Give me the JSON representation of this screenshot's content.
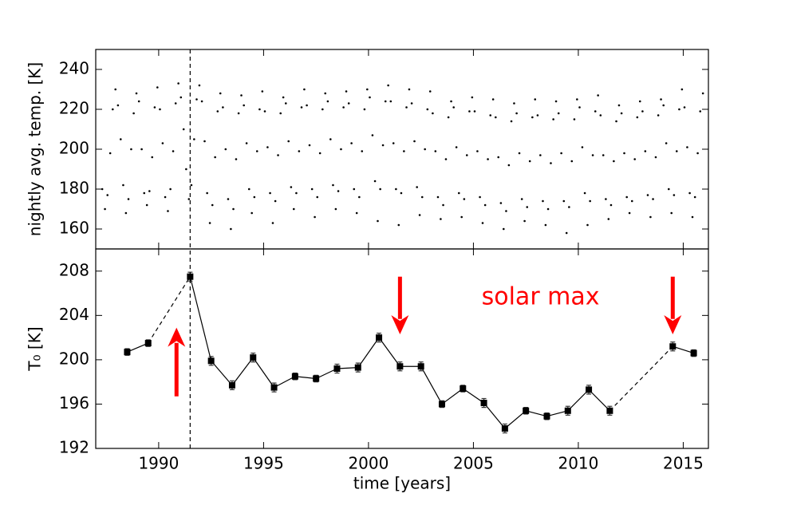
{
  "chart_data": [
    {
      "type": "scatter",
      "ylabel": "nightly avg. temp. [K]",
      "color": "#000000",
      "xlim": [
        1987,
        2016.2
      ],
      "xticks": [
        1990,
        1995,
        2000,
        2005,
        2010,
        2015
      ],
      "xtick_labels": false,
      "ylim": [
        150,
        250
      ],
      "yticks": [
        160,
        180,
        200,
        220,
        240
      ],
      "x": [
        1987.31,
        1987.44,
        1987.56,
        1987.69,
        1987.81,
        1987.94,
        1988.06,
        1988.19,
        1988.31,
        1988.44,
        1988.56,
        1988.69,
        1988.81,
        1988.94,
        1989.06,
        1989.19,
        1989.31,
        1989.44,
        1989.56,
        1989.69,
        1989.81,
        1989.94,
        1990.06,
        1990.19,
        1990.31,
        1990.44,
        1990.56,
        1990.69,
        1990.81,
        1990.94,
        1991.06,
        1991.19,
        1991.31,
        1991.44,
        1991.56,
        1991.69,
        1991.81,
        1991.94,
        1992.06,
        1992.19,
        1992.31,
        1992.44,
        1992.56,
        1992.69,
        1992.81,
        1992.94,
        1993.06,
        1993.19,
        1993.31,
        1993.44,
        1993.56,
        1993.69,
        1993.81,
        1993.94,
        1994.06,
        1994.19,
        1994.31,
        1994.44,
        1994.56,
        1994.69,
        1994.81,
        1994.94,
        1995.06,
        1995.19,
        1995.31,
        1995.44,
        1995.56,
        1995.69,
        1995.81,
        1995.94,
        1996.06,
        1996.19,
        1996.31,
        1996.44,
        1996.56,
        1996.69,
        1996.81,
        1996.94,
        1997.06,
        1997.19,
        1997.31,
        1997.44,
        1997.56,
        1997.69,
        1997.81,
        1997.94,
        1998.06,
        1998.19,
        1998.31,
        1998.44,
        1998.56,
        1998.69,
        1998.81,
        1998.94,
        1999.06,
        1999.19,
        1999.31,
        1999.44,
        1999.56,
        1999.69,
        1999.81,
        1999.94,
        2000.06,
        2000.19,
        2000.31,
        2000.44,
        2000.56,
        2000.69,
        2000.81,
        2000.94,
        2001.06,
        2001.19,
        2001.31,
        2001.44,
        2001.56,
        2001.69,
        2001.81,
        2001.94,
        2002.06,
        2002.19,
        2002.31,
        2002.44,
        2002.56,
        2002.69,
        2002.81,
        2002.94,
        2003.06,
        2003.19,
        2003.31,
        2003.44,
        2003.56,
        2003.69,
        2003.81,
        2003.94,
        2004.06,
        2004.19,
        2004.31,
        2004.44,
        2004.56,
        2004.69,
        2004.81,
        2004.94,
        2005.06,
        2005.19,
        2005.31,
        2005.44,
        2005.56,
        2005.69,
        2005.81,
        2005.94,
        2006.06,
        2006.19,
        2006.31,
        2006.44,
        2006.56,
        2006.69,
        2006.81,
        2006.94,
        2007.06,
        2007.19,
        2007.31,
        2007.44,
        2007.56,
        2007.69,
        2007.81,
        2007.94,
        2008.06,
        2008.19,
        2008.31,
        2008.44,
        2008.56,
        2008.69,
        2008.81,
        2008.94,
        2009.06,
        2009.19,
        2009.31,
        2009.44,
        2009.56,
        2009.69,
        2009.81,
        2009.94,
        2010.06,
        2010.19,
        2010.31,
        2010.44,
        2010.56,
        2010.69,
        2010.81,
        2010.94,
        2011.06,
        2011.19,
        2011.31,
        2011.44,
        2011.56,
        2011.69,
        2011.81,
        2011.94,
        2012.06,
        2012.19,
        2012.31,
        2012.44,
        2012.56,
        2012.69,
        2012.81,
        2012.94,
        2013.06,
        2013.19,
        2013.31,
        2013.44,
        2013.56,
        2013.69,
        2013.81,
        2013.94,
        2014.06,
        2014.19,
        2014.31,
        2014.44,
        2014.56,
        2014.69,
        2014.81,
        2014.94,
        2015.06,
        2015.19,
        2015.31,
        2015.44,
        2015.56,
        2015.69,
        2015.81,
        2015.94
      ],
      "values": [
        180,
        170,
        177,
        198,
        220,
        230,
        222,
        205,
        182,
        168,
        175,
        200,
        218,
        228,
        224,
        200,
        178,
        172,
        179,
        196,
        221,
        231,
        220,
        203,
        176,
        169,
        180,
        199,
        223,
        233,
        226,
        210,
        190,
        175,
        182,
        205,
        225,
        232,
        224,
        204,
        178,
        163,
        172,
        196,
        219,
        228,
        221,
        200,
        175,
        160,
        170,
        195,
        218,
        227,
        222,
        203,
        180,
        168,
        176,
        199,
        220,
        229,
        219,
        201,
        178,
        163,
        174,
        197,
        218,
        226,
        223,
        204,
        181,
        170,
        178,
        199,
        221,
        230,
        222,
        202,
        180,
        166,
        176,
        198,
        220,
        228,
        224,
        205,
        182,
        170,
        179,
        200,
        221,
        229,
        223,
        203,
        180,
        168,
        176,
        199,
        220,
        230,
        226,
        207,
        184,
        164,
        180,
        202,
        224,
        232,
        224,
        203,
        180,
        162,
        178,
        199,
        221,
        230,
        223,
        204,
        181,
        167,
        176,
        200,
        220,
        229,
        218,
        199,
        176,
        165,
        172,
        195,
        216,
        224,
        221,
        201,
        178,
        166,
        175,
        197,
        219,
        226,
        219,
        199,
        176,
        163,
        172,
        195,
        217,
        225,
        216,
        196,
        173,
        160,
        169,
        192,
        214,
        223,
        218,
        198,
        175,
        164,
        171,
        194,
        216,
        225,
        217,
        197,
        174,
        162,
        170,
        193,
        215,
        224,
        218,
        198,
        174,
        158,
        171,
        194,
        215,
        225,
        221,
        201,
        178,
        162,
        174,
        197,
        219,
        227,
        217,
        197,
        175,
        165,
        172,
        194,
        214,
        222,
        218,
        198,
        176,
        168,
        174,
        195,
        216,
        224,
        219,
        199,
        177,
        166,
        175,
        196,
        217,
        225,
        222,
        203,
        180,
        168,
        177,
        199,
        220,
        230,
        221,
        201,
        178,
        166,
        176,
        198,
        219,
        228
      ]
    },
    {
      "type": "errorbar",
      "xlabel": "time [years]",
      "ylabel": "T₀ [K]",
      "color": "#000000",
      "xlim": [
        1987,
        2016.2
      ],
      "xticks": [
        1990,
        1995,
        2000,
        2005,
        2010,
        2015
      ],
      "ylim": [
        192,
        210
      ],
      "yticks": [
        192,
        196,
        200,
        204,
        208
      ],
      "x": [
        1988.5,
        1989.5,
        1991.5,
        1992.5,
        1993.5,
        1994.5,
        1995.5,
        1996.5,
        1997.5,
        1998.5,
        1999.5,
        2000.5,
        2001.5,
        2002.5,
        2003.5,
        2004.5,
        2005.5,
        2006.5,
        2007.5,
        2008.5,
        2009.5,
        2010.5,
        2011.5,
        2014.5,
        2015.5
      ],
      "values": [
        200.7,
        201.5,
        207.5,
        199.9,
        197.7,
        200.2,
        197.5,
        198.5,
        198.3,
        199.2,
        199.3,
        202.0,
        199.4,
        199.4,
        196.0,
        197.4,
        196.1,
        193.8,
        195.4,
        194.9,
        195.4,
        197.3,
        195.4,
        201.2,
        200.6
      ],
      "errors": [
        0.3,
        0.3,
        0.4,
        0.4,
        0.4,
        0.4,
        0.4,
        0.3,
        0.3,
        0.4,
        0.4,
        0.4,
        0.4,
        0.4,
        0.3,
        0.3,
        0.4,
        0.4,
        0.3,
        0.3,
        0.4,
        0.4,
        0.4,
        0.4,
        0.3
      ],
      "segment_styles": [
        "solid",
        "dashed",
        "solid",
        "solid",
        "solid",
        "solid",
        "solid",
        "solid",
        "solid",
        "solid",
        "solid",
        "solid",
        "solid",
        "solid",
        "solid",
        "solid",
        "solid",
        "solid",
        "solid",
        "solid",
        "solid",
        "solid",
        "dashed",
        "solid"
      ],
      "vline": 1991.5,
      "annotations": [
        {
          "text": "solar max",
          "x": 2008.2,
          "y": 205.6,
          "color": "#ff0000"
        }
      ],
      "arrows": [
        {
          "x": 1990.85,
          "y_from": 196.7,
          "y_to": 202.9,
          "color": "#ff0000"
        },
        {
          "x": 2001.5,
          "y_from": 207.5,
          "y_to": 202.3,
          "color": "#ff0000"
        },
        {
          "x": 2014.5,
          "y_from": 207.5,
          "y_to": 202.3,
          "color": "#ff0000"
        }
      ]
    }
  ]
}
